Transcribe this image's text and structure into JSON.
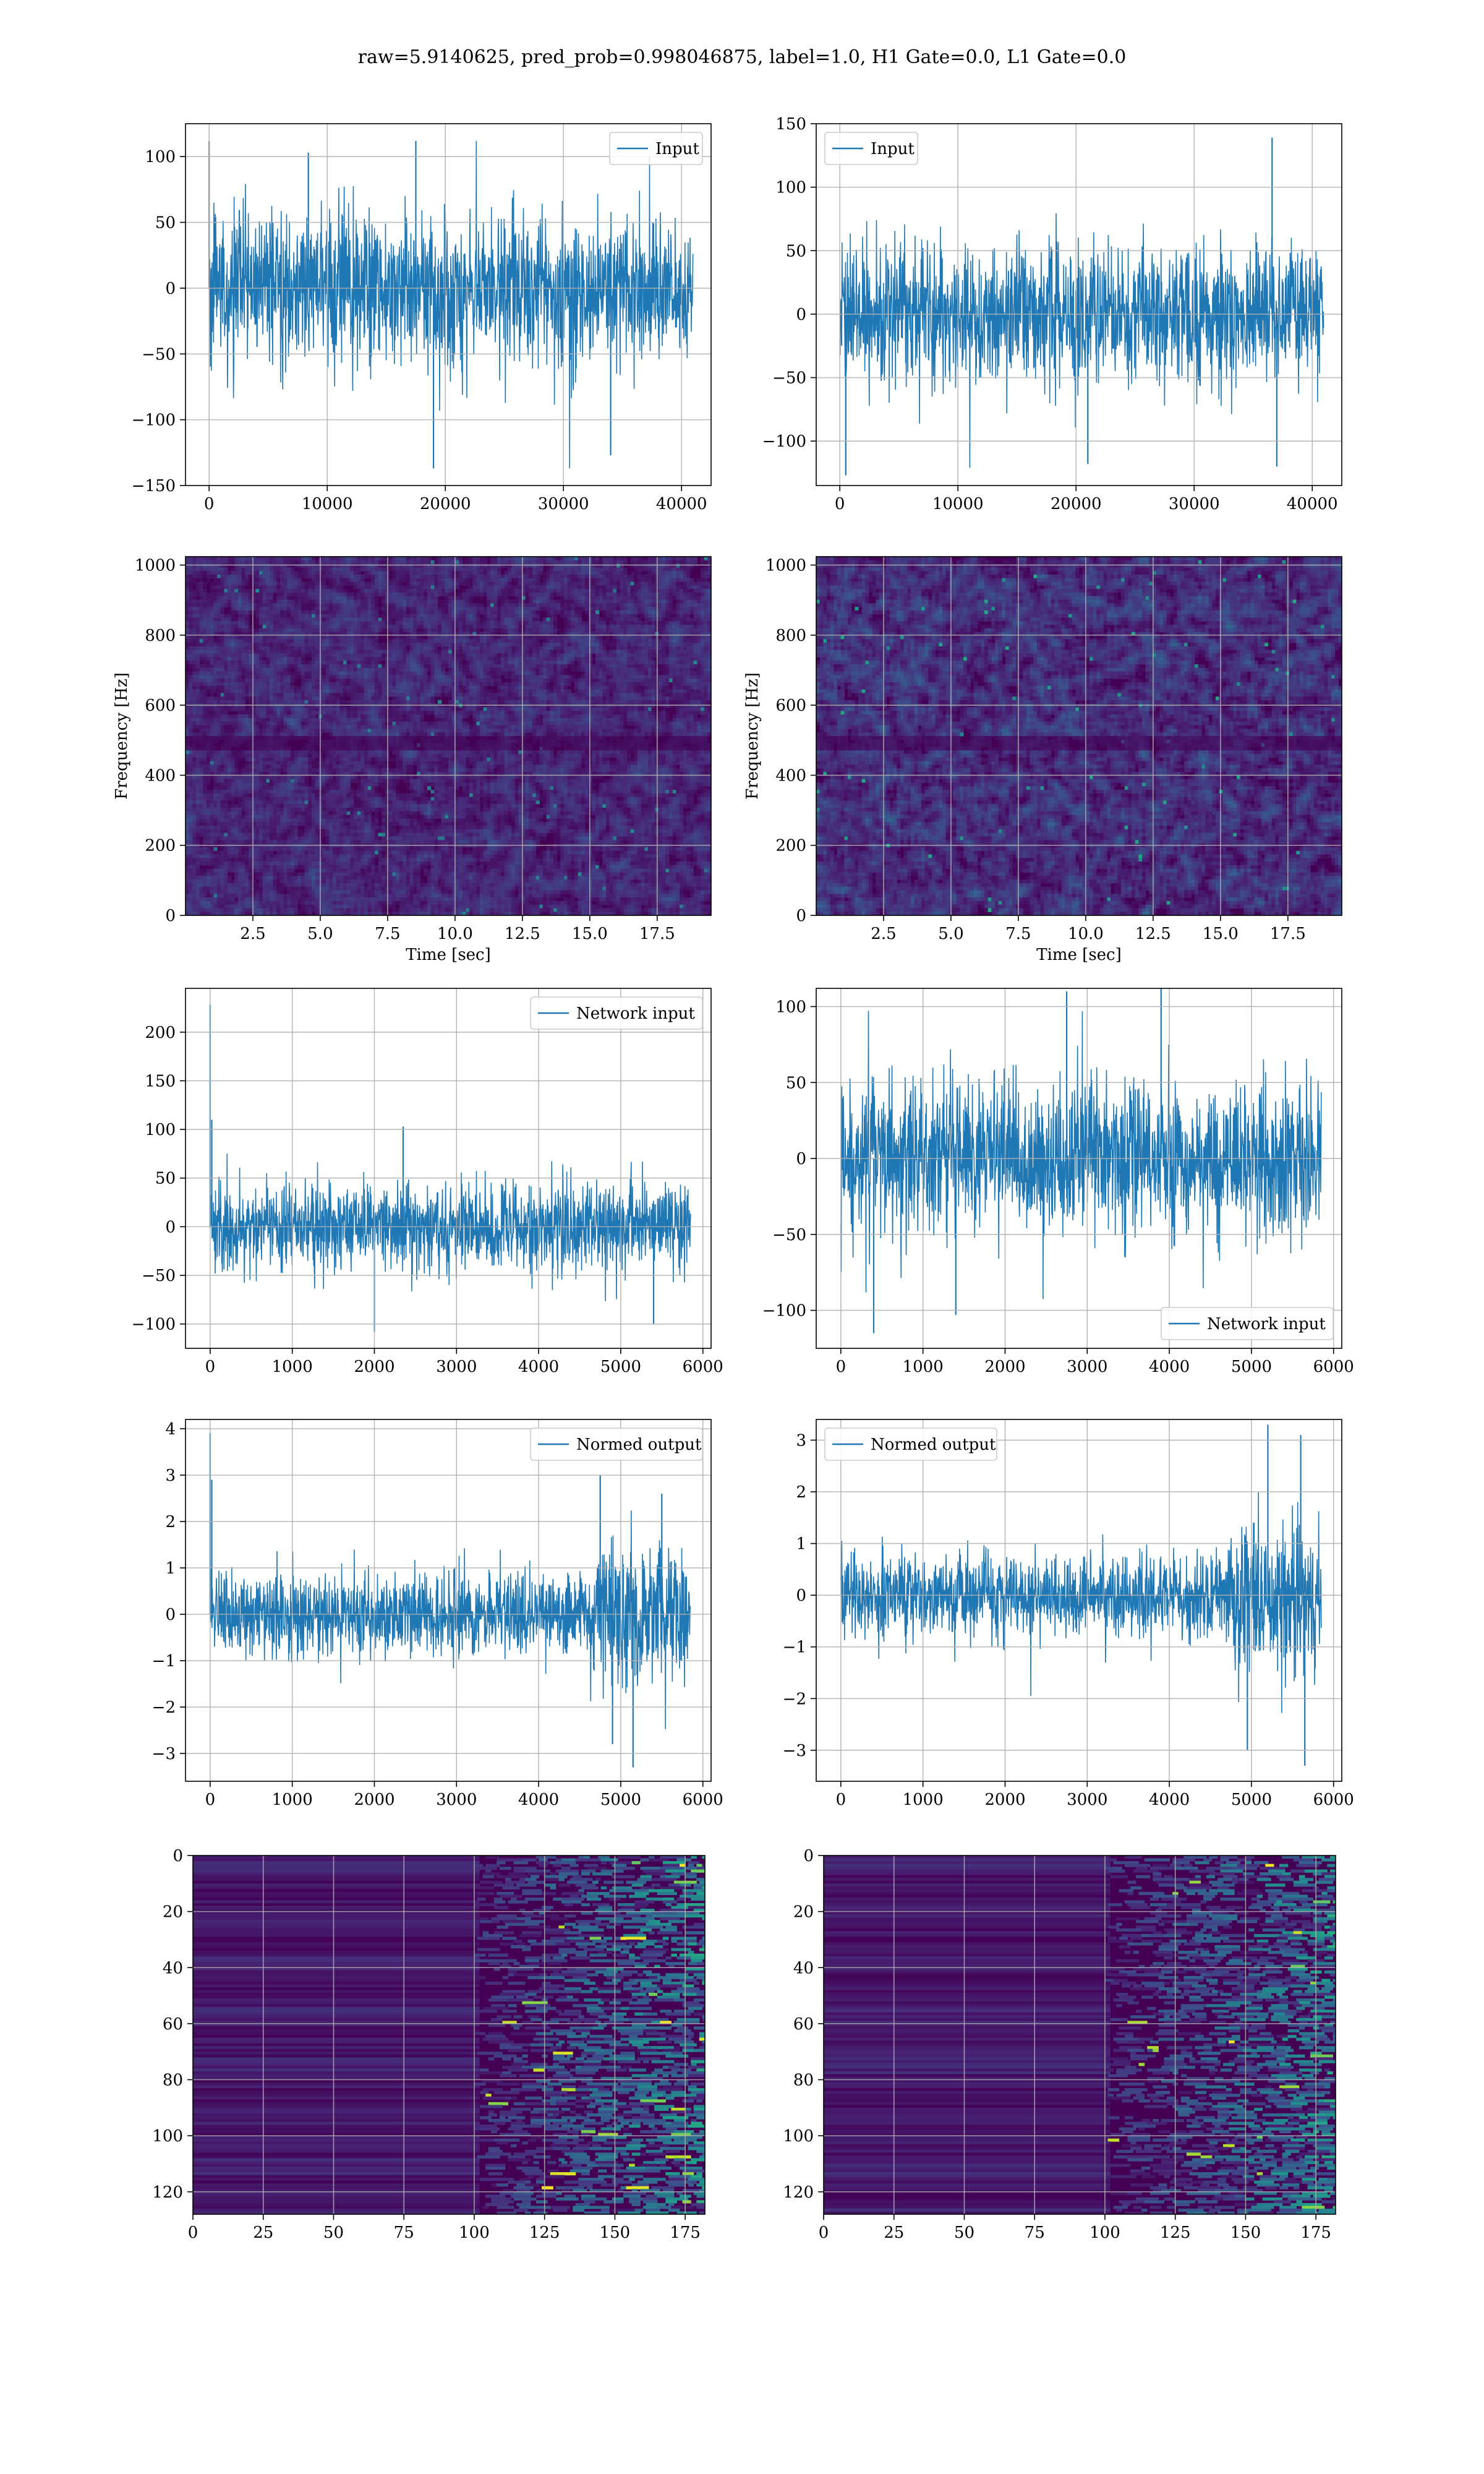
{
  "suptitle": "raw=5.9140625, pred_prob=0.998046875, label=1.0, H1 Gate=0.0, L1 Gate=0.0",
  "colors": {
    "series": "#1f77b4",
    "grid": "#b0b0b0",
    "viridis_dark": "#440154"
  },
  "chart_data": [
    {
      "type": "line",
      "row": 0,
      "col": 0,
      "legend": {
        "label": "Input",
        "loc": "upper right"
      },
      "xlim": [
        -2000,
        42500
      ],
      "ylim": [
        -150,
        125
      ],
      "xticks": [
        0,
        10000,
        20000,
        30000,
        40000
      ],
      "yticks": [
        -150,
        -100,
        -50,
        0,
        50,
        100
      ],
      "signal": {
        "x0": 0,
        "x1": 40960,
        "amp": 28,
        "env": [
          [
            0,
            1
          ],
          [
            1,
            1
          ]
        ],
        "min": -137,
        "max": 112,
        "spikes": [
          [
            8400,
            103
          ],
          [
            17500,
            112
          ],
          [
            19000,
            -137
          ],
          [
            34000,
            -127
          ],
          [
            0,
            112
          ]
        ]
      },
      "grid": true
    },
    {
      "type": "line",
      "row": 0,
      "col": 1,
      "legend": {
        "label": "Input",
        "loc": "upper left"
      },
      "xlim": [
        -2000,
        42500
      ],
      "ylim": [
        -135,
        150
      ],
      "xticks": [
        0,
        10000,
        20000,
        30000,
        40000
      ],
      "yticks": [
        -100,
        -50,
        0,
        50,
        100,
        150
      ],
      "signal": {
        "x0": 0,
        "x1": 40960,
        "amp": 28,
        "env": [
          [
            0,
            1
          ],
          [
            1,
            1
          ]
        ],
        "min": -127,
        "max": 139,
        "spikes": [
          [
            500,
            -127
          ],
          [
            36600,
            139
          ],
          [
            37000,
            -120
          ],
          [
            21000,
            -118
          ]
        ]
      },
      "grid": true
    },
    {
      "type": "spectrogram",
      "row": 1,
      "col": 0,
      "xlabel": "Time [sec]",
      "ylabel": "Frequency [Hz]",
      "xlim": [
        0,
        19.5
      ],
      "ylim": [
        0,
        1024
      ],
      "xticks": [
        2.5,
        5.0,
        7.5,
        10.0,
        12.5,
        15.0,
        17.5
      ],
      "xtick_labels": [
        "2.5",
        "5.0",
        "7.5",
        "10.0",
        "12.5",
        "15.0",
        "17.5"
      ],
      "yticks": [
        0,
        200,
        400,
        600,
        800,
        1000
      ],
      "grid": true
    },
    {
      "type": "spectrogram",
      "row": 1,
      "col": 1,
      "xlabel": "Time [sec]",
      "ylabel": "Frequency [Hz]",
      "xlim": [
        0,
        19.5
      ],
      "ylim": [
        0,
        1024
      ],
      "xticks": [
        2.5,
        5.0,
        7.5,
        10.0,
        12.5,
        15.0,
        17.5
      ],
      "xtick_labels": [
        "2.5",
        "5.0",
        "7.5",
        "10.0",
        "12.5",
        "15.0",
        "17.5"
      ],
      "yticks": [
        0,
        200,
        400,
        600,
        800,
        1000
      ],
      "grid": true
    },
    {
      "type": "line",
      "row": 2,
      "col": 0,
      "legend": {
        "label": "Network input",
        "loc": "upper right"
      },
      "xlim": [
        -300,
        6100
      ],
      "ylim": [
        -125,
        245
      ],
      "xticks": [
        0,
        1000,
        2000,
        3000,
        4000,
        5000,
        6000
      ],
      "yticks": [
        -100,
        -50,
        0,
        50,
        100,
        150,
        200
      ],
      "signal": {
        "x0": 0,
        "x1": 5850,
        "amp": 22,
        "env": [
          [
            0,
            1
          ],
          [
            1,
            1
          ]
        ],
        "min": -110,
        "max": 228,
        "spikes": [
          [
            0,
            228
          ],
          [
            20,
            110
          ],
          [
            2000,
            -108
          ],
          [
            2350,
            103
          ],
          [
            5400,
            -100
          ]
        ]
      },
      "grid": true
    },
    {
      "type": "line",
      "row": 2,
      "col": 1,
      "legend": {
        "label": "Network input",
        "loc": "lower right"
      },
      "xlim": [
        -300,
        6100
      ],
      "ylim": [
        -125,
        112
      ],
      "xticks": [
        0,
        1000,
        2000,
        3000,
        4000,
        5000,
        6000
      ],
      "yticks": [
        -100,
        -50,
        0,
        50,
        100
      ],
      "signal": {
        "x0": 0,
        "x1": 5850,
        "amp": 25,
        "env": [
          [
            0,
            1
          ],
          [
            1,
            1
          ]
        ],
        "min": -115,
        "max": 113,
        "spikes": [
          [
            400,
            -115
          ],
          [
            1400,
            -103
          ],
          [
            3900,
            113
          ],
          [
            2750,
            110
          ]
        ]
      },
      "grid": true
    },
    {
      "type": "line",
      "row": 3,
      "col": 0,
      "legend": {
        "label": "Normed output",
        "loc": "upper right"
      },
      "xlim": [
        -300,
        6100
      ],
      "ylim": [
        -3.6,
        4.2
      ],
      "xticks": [
        0,
        1000,
        2000,
        3000,
        4000,
        5000,
        6000
      ],
      "yticks": [
        -3,
        -2,
        -1,
        0,
        1,
        2,
        3,
        4
      ],
      "signal": {
        "x0": 0,
        "x1": 5850,
        "amp": 0.45,
        "env": [
          [
            0,
            1
          ],
          [
            0.78,
            1
          ],
          [
            0.8,
            1.7
          ],
          [
            1,
            1.7
          ]
        ],
        "min": -3.3,
        "max": 3.9,
        "spikes": [
          [
            0,
            3.9
          ],
          [
            20,
            2.9
          ],
          [
            4750,
            3.0
          ],
          [
            5150,
            -3.3
          ],
          [
            5500,
            2.6
          ],
          [
            4900,
            -2.8
          ]
        ]
      },
      "grid": true
    },
    {
      "type": "line",
      "row": 3,
      "col": 1,
      "legend": {
        "label": "Normed output",
        "loc": "upper left"
      },
      "xlim": [
        -300,
        6100
      ],
      "ylim": [
        -3.6,
        3.4
      ],
      "xticks": [
        0,
        1000,
        2000,
        3000,
        4000,
        5000,
        6000
      ],
      "yticks": [
        -3,
        -2,
        -1,
        0,
        1,
        2,
        3
      ],
      "signal": {
        "x0": 0,
        "x1": 5850,
        "amp": 0.4,
        "env": [
          [
            0,
            1
          ],
          [
            0.8,
            1
          ],
          [
            0.82,
            1.8
          ],
          [
            1,
            1.8
          ]
        ],
        "min": -3.3,
        "max": 3.3,
        "spikes": [
          [
            5200,
            3.3
          ],
          [
            5600,
            3.1
          ],
          [
            5650,
            -3.3
          ],
          [
            4950,
            -3.0
          ]
        ]
      },
      "grid": true
    },
    {
      "type": "heatmap",
      "row": 4,
      "col": 0,
      "xlim": [
        0,
        182
      ],
      "ylim": [
        128,
        0
      ],
      "xticks": [
        0,
        25,
        50,
        75,
        100,
        125,
        150,
        175
      ],
      "yticks": [
        0,
        20,
        40,
        60,
        80,
        100,
        120
      ],
      "grid": true
    },
    {
      "type": "heatmap",
      "row": 4,
      "col": 1,
      "xlim": [
        0,
        182
      ],
      "ylim": [
        128,
        0
      ],
      "xticks": [
        0,
        25,
        50,
        75,
        100,
        125,
        150,
        175
      ],
      "yticks": [
        0,
        20,
        40,
        60,
        80,
        100,
        120
      ],
      "grid": true
    }
  ]
}
